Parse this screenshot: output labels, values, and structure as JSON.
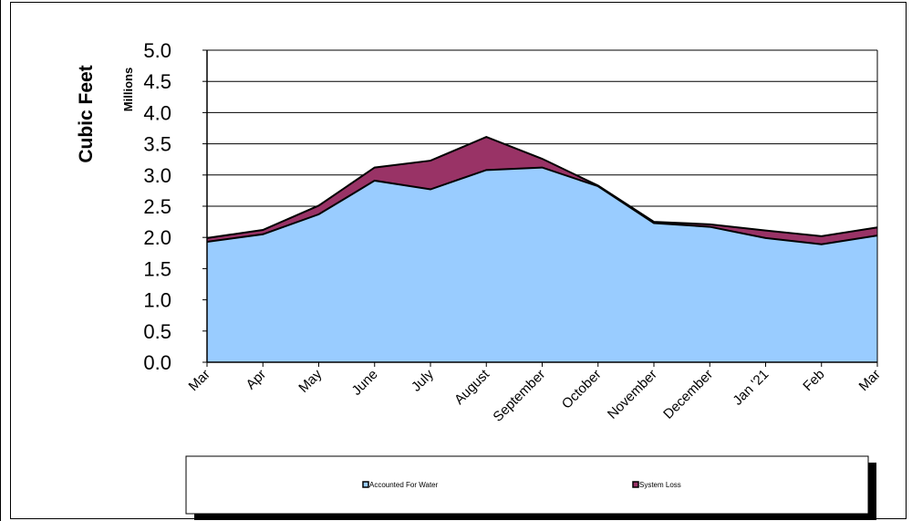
{
  "chart_data": {
    "type": "area",
    "stacked": true,
    "title": "",
    "xlabel": "",
    "ylabel": "Cubic Feet",
    "unit_label": "Millions",
    "ylim": [
      0,
      5.0
    ],
    "y_ticks": [
      "0.0",
      "0.5",
      "1.0",
      "1.5",
      "2.0",
      "2.5",
      "3.0",
      "3.5",
      "4.0",
      "4.5",
      "5.0"
    ],
    "grid": true,
    "legend_position": "bottom",
    "categories": [
      "Mar",
      "Apr",
      "May",
      "June",
      "July",
      "August",
      "September",
      "October",
      "November",
      "December",
      "Jan '21",
      "Feb",
      "Mar"
    ],
    "series": [
      {
        "name": "Accounted For Water",
        "color": "#99CCFF",
        "values": [
          1.93,
          2.05,
          2.37,
          2.91,
          2.77,
          3.08,
          3.12,
          2.82,
          2.23,
          2.17,
          1.99,
          1.89,
          2.03
        ]
      },
      {
        "name": "System Loss",
        "color": "#993366",
        "values": [
          0.06,
          0.07,
          0.14,
          0.21,
          0.46,
          0.53,
          0.14,
          0.01,
          0.02,
          0.04,
          0.12,
          0.13,
          0.13
        ]
      }
    ]
  }
}
